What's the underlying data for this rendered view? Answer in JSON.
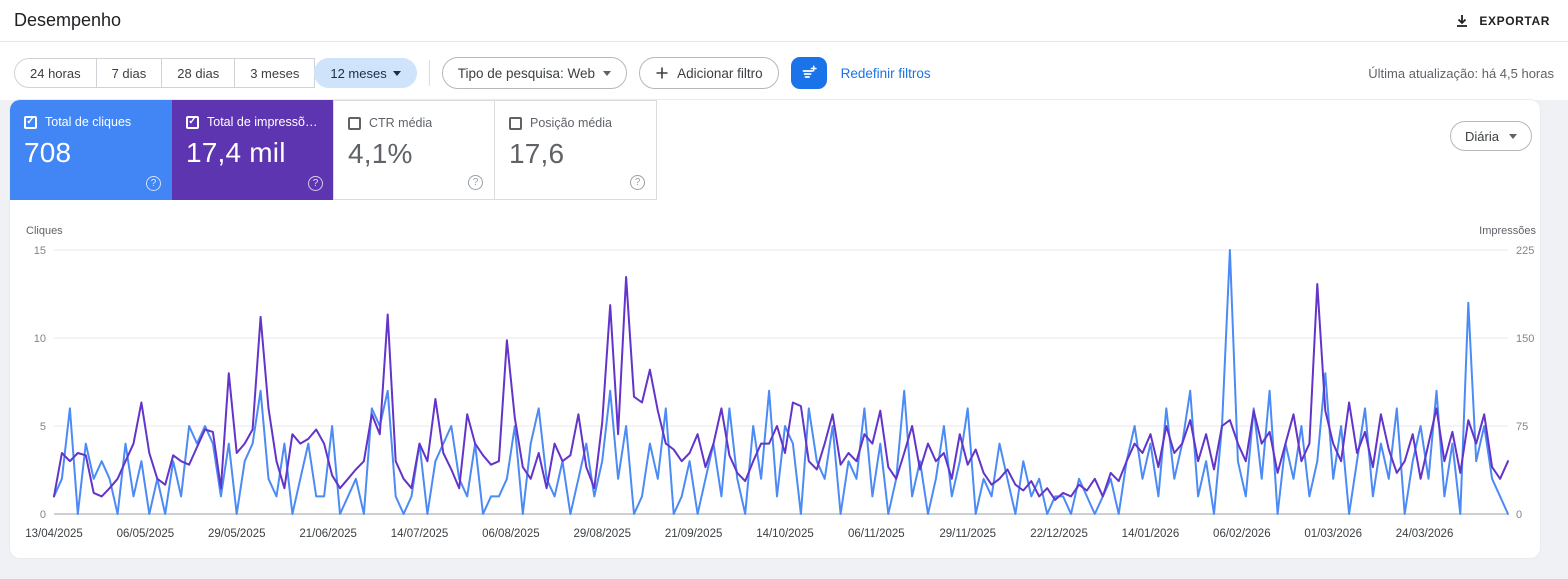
{
  "header": {
    "title": "Desempenho",
    "export_label": "EXPORTAR"
  },
  "icons": {
    "export": "download-icon",
    "filter_button": "tune-icon",
    "chip_caret": "chevron-down-icon",
    "help": "question-circle-icon"
  },
  "filters": {
    "date_ranges": [
      {
        "label": "24 horas",
        "selected": false
      },
      {
        "label": "7 dias",
        "selected": false
      },
      {
        "label": "28 dias",
        "selected": false
      },
      {
        "label": "3 meses",
        "selected": false
      },
      {
        "label": "12 meses",
        "selected": true
      }
    ],
    "search_type_label": "Tipo de pesquisa: Web",
    "add_filter_label": "Adicionar filtro",
    "reset_filters_label": "Redefinir filtros",
    "last_update": "Última atualização: há 4,5 horas"
  },
  "metrics": {
    "granularity_label": "Diária",
    "cards": [
      {
        "label": "Total de cliques",
        "value": "708",
        "checked": true,
        "color": "#4285f4"
      },
      {
        "label": "Total de impressõ…",
        "value": "17,4 mil",
        "checked": true,
        "color": "#5e35b1"
      },
      {
        "label": "CTR média",
        "value": "4,1%",
        "checked": false,
        "color": ""
      },
      {
        "label": "Posição média",
        "value": "17,6",
        "checked": false,
        "color": ""
      }
    ]
  },
  "chart_data": {
    "type": "line",
    "left_axis": {
      "label": "Cliques",
      "ticks": [
        0,
        5,
        10,
        15
      ],
      "max": 15
    },
    "right_axis": {
      "label": "Impressões",
      "ticks": [
        0,
        75,
        150,
        225
      ],
      "max": 225
    },
    "x_tick_labels": [
      "13/04/2025",
      "06/05/2025",
      "29/05/2025",
      "21/06/2025",
      "14/07/2025",
      "06/08/2025",
      "29/08/2025",
      "21/09/2025",
      "14/10/2025",
      "06/11/2025",
      "29/11/2025",
      "22/12/2025",
      "14/01/2026",
      "06/02/2026",
      "01/03/2026",
      "24/03/2026"
    ],
    "x_tick_days": [
      0,
      23,
      46,
      69,
      92,
      115,
      138,
      161,
      184,
      207,
      230,
      253,
      276,
      299,
      322,
      345
    ],
    "total_days": 366,
    "sample_step_days": 2,
    "grid": true,
    "legend_position": "none",
    "series": [
      {
        "name": "Cliques",
        "axis": "left",
        "color": "#4c8bf5",
        "values": [
          1,
          2,
          6,
          0,
          4,
          2,
          3,
          2,
          0,
          4,
          1,
          3,
          0,
          2,
          0,
          3,
          1,
          5,
          4,
          5,
          4,
          1,
          4,
          0,
          3,
          4,
          7,
          2,
          1,
          4,
          0,
          2,
          4,
          1,
          1,
          5,
          0,
          1,
          2,
          0,
          6,
          5,
          7,
          1,
          0,
          1,
          4,
          0,
          3,
          4,
          5,
          2,
          1,
          4,
          0,
          1,
          1,
          2,
          5,
          0,
          4,
          6,
          2,
          1,
          3,
          0,
          2,
          4,
          1,
          3,
          7,
          2,
          5,
          0,
          1,
          4,
          2,
          6,
          0,
          1,
          3,
          0,
          2,
          4,
          1,
          6,
          2,
          0,
          5,
          2,
          7,
          1,
          5,
          4,
          0,
          6,
          3,
          2,
          5,
          0,
          3,
          2,
          6,
          1,
          4,
          0,
          2,
          7,
          1,
          3,
          0,
          2,
          5,
          1,
          3,
          6,
          0,
          2,
          1,
          4,
          2,
          0,
          3,
          1,
          2,
          0,
          1,
          1,
          0,
          2,
          1,
          0,
          1,
          2,
          0,
          3,
          5,
          2,
          4,
          1,
          6,
          2,
          4,
          7,
          1,
          3,
          0,
          5,
          15,
          3,
          1,
          6,
          2,
          7,
          0,
          4,
          2,
          5,
          1,
          3,
          8,
          2,
          5,
          0,
          3,
          6,
          1,
          4,
          2,
          6,
          0,
          3,
          5,
          2,
          7,
          1,
          4,
          0,
          12,
          3,
          5,
          2,
          1,
          0
        ]
      },
      {
        "name": "Impressões",
        "axis": "right",
        "color": "#6334c9",
        "values": [
          15,
          52,
          45,
          52,
          50,
          18,
          15,
          22,
          30,
          45,
          60,
          95,
          52,
          30,
          25,
          50,
          45,
          42,
          57,
          72,
          70,
          22,
          120,
          52,
          60,
          72,
          168,
          90,
          45,
          22,
          68,
          60,
          64,
          72,
          60,
          33,
          22,
          30,
          38,
          45,
          85,
          68,
          170,
          45,
          30,
          22,
          60,
          45,
          98,
          52,
          38,
          22,
          85,
          60,
          50,
          42,
          45,
          148,
          82,
          40,
          30,
          52,
          22,
          60,
          45,
          50,
          85,
          40,
          22,
          78,
          178,
          68,
          202,
          100,
          95,
          123,
          88,
          60,
          55,
          45,
          52,
          68,
          40,
          60,
          90,
          50,
          35,
          28,
          45,
          60,
          60,
          75,
          52,
          95,
          92,
          45,
          38,
          60,
          85,
          42,
          52,
          45,
          68,
          60,
          88,
          40,
          30,
          52,
          75,
          38,
          60,
          45,
          52,
          30,
          68,
          42,
          55,
          35,
          25,
          30,
          38,
          25,
          20,
          28,
          15,
          22,
          12,
          18,
          15,
          25,
          20,
          30,
          15,
          35,
          28,
          45,
          60,
          52,
          68,
          40,
          75,
          52,
          60,
          80,
          45,
          68,
          38,
          75,
          80,
          60,
          45,
          88,
          60,
          70,
          35,
          60,
          85,
          45,
          60,
          196,
          88,
          60,
          45,
          95,
          52,
          70,
          40,
          85,
          55,
          35,
          45,
          68,
          30,
          60,
          90,
          45,
          70,
          35,
          80,
          60,
          85,
          40,
          30,
          45
        ]
      }
    ]
  }
}
